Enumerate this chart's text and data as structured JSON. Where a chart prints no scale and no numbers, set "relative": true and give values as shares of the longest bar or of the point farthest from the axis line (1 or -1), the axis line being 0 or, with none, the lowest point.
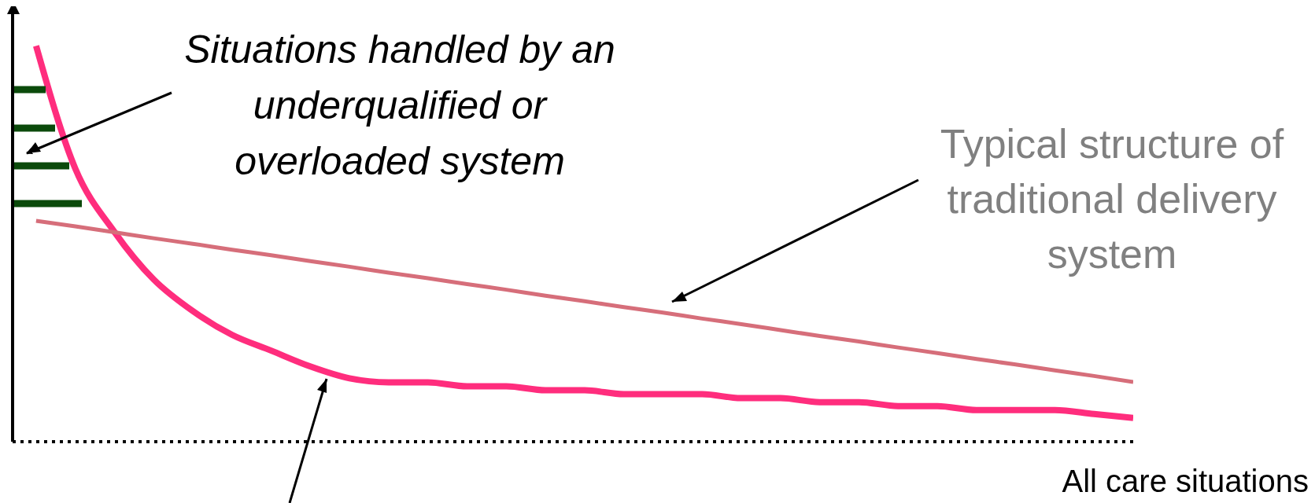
{
  "chart_data": {
    "type": "line",
    "relative": true,
    "xlabel": "All care situations",
    "categories": [
      null,
      null,
      null,
      null,
      null,
      null,
      null,
      null,
      null,
      null,
      null,
      null,
      null,
      null,
      null,
      null,
      null,
      null,
      null,
      null,
      null,
      null,
      null,
      null,
      null,
      null,
      null,
      null,
      null
    ],
    "series": [
      {
        "color": "#ff2d7d",
        "values": [
          1.0,
          0.69,
          0.53,
          0.41,
          0.33,
          0.27,
          0.23,
          0.19,
          0.16,
          0.15,
          0.15,
          0.14,
          0.14,
          0.13,
          0.13,
          0.12,
          0.12,
          0.12,
          0.11,
          0.11,
          0.1,
          0.1,
          0.09,
          0.09,
          0.08,
          0.08,
          0.08,
          0.07,
          0.06
        ]
      },
      {
        "color": "#d66e7a",
        "values": [
          0.558,
          0.544,
          0.529,
          0.514,
          0.5,
          0.485,
          0.471,
          0.456,
          0.442,
          0.427,
          0.413,
          0.398,
          0.384,
          0.369,
          0.355,
          0.34,
          0.326,
          0.311,
          0.297,
          0.282,
          0.267,
          0.253,
          0.238,
          0.224,
          0.209,
          0.195,
          0.18,
          0.166,
          0.151
        ]
      }
    ],
    "annotations": [
      "Situations handled by an underqualified or overloaded system",
      "Typical structure of traditional delivery system"
    ],
    "legend": false,
    "grid": false,
    "marker": "none"
  }
}
